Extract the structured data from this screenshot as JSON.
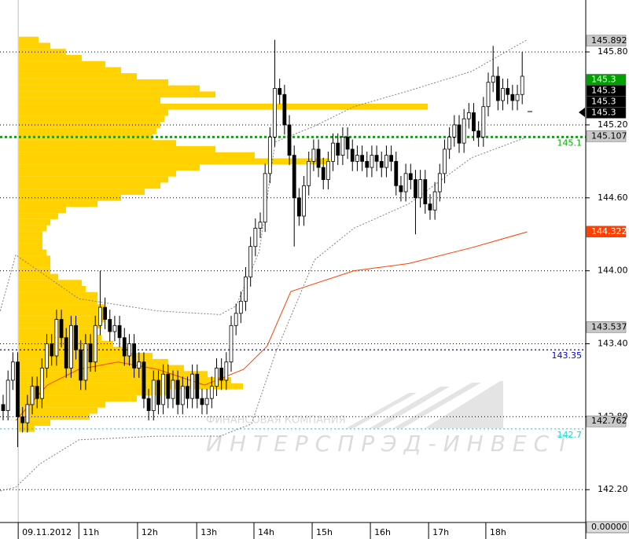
{
  "chart_data": {
    "type": "candlestick",
    "xlim": [
      -0.65,
      120
    ],
    "ylim": [
      141.93,
      146.227
    ],
    "yticks": [
      {
        "value": 142.2,
        "label": "142.20"
      },
      {
        "value": 142.8,
        "label": "142.80"
      },
      {
        "value": 143.4,
        "label": "143.40"
      },
      {
        "value": 144.0,
        "label": "144.00"
      },
      {
        "value": 144.6,
        "label": "144.60"
      },
      {
        "value": 145.2,
        "label": "145.20"
      },
      {
        "value": 145.8,
        "label": "145.80"
      }
    ],
    "xticks": [
      {
        "value": 3.1,
        "label": "09.11.2012"
      },
      {
        "value": 15.6,
        "label": "11h"
      },
      {
        "value": 27.7,
        "label": "12h"
      },
      {
        "value": 39.9,
        "label": "13h"
      },
      {
        "value": 51.7,
        "label": "14h"
      },
      {
        "value": 63.7,
        "label": "15h"
      },
      {
        "value": 75.7,
        "label": "16h"
      },
      {
        "value": 87.7,
        "label": "17h"
      },
      {
        "value": 99.5,
        "label": "18h"
      }
    ],
    "grid": true,
    "x": [
      0,
      1,
      2,
      3,
      4,
      5,
      6,
      7,
      8,
      9,
      10,
      11,
      12,
      13,
      14,
      15,
      16,
      17,
      18,
      19,
      20,
      21,
      22,
      23,
      24,
      25,
      26,
      27,
      28,
      29,
      30,
      31,
      32,
      33,
      34,
      35,
      36,
      37,
      38,
      39,
      40,
      41,
      42,
      43,
      44,
      45,
      46,
      47,
      48,
      49,
      50,
      51,
      52,
      53,
      54,
      55,
      56,
      57,
      58,
      59,
      60,
      61,
      62,
      63,
      64,
      65,
      66,
      67,
      68,
      69,
      70,
      71,
      72,
      73,
      74,
      75,
      76,
      77,
      78,
      79,
      80,
      81,
      82,
      83,
      84,
      85,
      86,
      87,
      88,
      89,
      90,
      91,
      92,
      93,
      94,
      95,
      96,
      97,
      98,
      99,
      100,
      101,
      102,
      103,
      104,
      105,
      106,
      107
    ],
    "candles": [
      [
        142.9,
        142.98,
        142.77,
        142.85
      ],
      [
        142.85,
        143.18,
        142.77,
        143.1
      ],
      [
        143.1,
        143.33,
        143.02,
        143.25
      ],
      [
        143.25,
        143.33,
        142.55,
        142.8
      ],
      [
        142.8,
        142.88,
        142.67,
        142.75
      ],
      [
        142.75,
        142.98,
        142.67,
        142.9
      ],
      [
        142.9,
        143.13,
        142.82,
        143.05
      ],
      [
        143.05,
        143.13,
        142.87,
        142.95
      ],
      [
        142.95,
        143.28,
        142.87,
        143.2
      ],
      [
        143.2,
        143.48,
        143.12,
        143.4
      ],
      [
        143.4,
        143.48,
        143.22,
        143.3
      ],
      [
        143.3,
        143.68,
        143.22,
        143.6
      ],
      [
        143.6,
        143.68,
        143.37,
        143.45
      ],
      [
        143.45,
        143.53,
        143.12,
        143.2
      ],
      [
        143.2,
        143.63,
        143.12,
        143.55
      ],
      [
        143.55,
        143.63,
        143.27,
        143.35
      ],
      [
        143.35,
        143.43,
        143.02,
        143.1
      ],
      [
        143.1,
        143.48,
        143.02,
        143.4
      ],
      [
        143.4,
        143.48,
        143.17,
        143.25
      ],
      [
        143.25,
        143.63,
        143.17,
        143.55
      ],
      [
        143.55,
        144.0,
        143.47,
        143.7
      ],
      [
        143.7,
        143.78,
        143.52,
        143.6
      ],
      [
        143.6,
        143.68,
        143.42,
        143.5
      ],
      [
        143.5,
        143.63,
        143.42,
        143.55
      ],
      [
        143.55,
        143.63,
        143.37,
        143.45
      ],
      [
        143.45,
        143.53,
        143.22,
        143.3
      ],
      [
        143.3,
        143.48,
        143.22,
        143.4
      ],
      [
        143.4,
        143.48,
        143.12,
        143.2
      ],
      [
        143.2,
        143.33,
        143.12,
        143.25
      ],
      [
        143.25,
        143.33,
        142.87,
        142.95
      ],
      [
        142.95,
        143.03,
        142.77,
        142.85
      ],
      [
        142.85,
        143.18,
        142.77,
        143.1
      ],
      [
        143.1,
        143.18,
        142.82,
        142.9
      ],
      [
        142.9,
        143.23,
        142.82,
        143.15
      ],
      [
        143.15,
        143.23,
        142.87,
        142.95
      ],
      [
        142.95,
        143.18,
        142.87,
        143.1
      ],
      [
        143.1,
        143.18,
        142.82,
        142.9
      ],
      [
        142.9,
        143.13,
        142.82,
        143.05
      ],
      [
        143.05,
        143.13,
        142.87,
        142.95
      ],
      [
        142.95,
        143.23,
        142.87,
        143.15
      ],
      [
        143.15,
        143.23,
        142.87,
        142.95
      ],
      [
        142.95,
        143.03,
        142.82,
        142.9
      ],
      [
        142.9,
        143.03,
        142.82,
        142.95
      ],
      [
        142.95,
        143.13,
        142.87,
        143.05
      ],
      [
        143.05,
        143.28,
        142.97,
        143.2
      ],
      [
        143.2,
        143.28,
        143.02,
        143.1
      ],
      [
        143.1,
        143.33,
        143.02,
        143.25
      ],
      [
        143.25,
        143.63,
        143.17,
        143.55
      ],
      [
        143.55,
        143.73,
        143.47,
        143.65
      ],
      [
        143.65,
        143.83,
        143.57,
        143.75
      ],
      [
        143.75,
        144.03,
        143.67,
        143.95
      ],
      [
        143.95,
        144.28,
        143.87,
        144.2
      ],
      [
        144.2,
        144.43,
        144.12,
        144.35
      ],
      [
        144.35,
        144.48,
        144.27,
        144.4
      ],
      [
        144.4,
        144.88,
        144.32,
        144.8
      ],
      [
        144.8,
        145.18,
        144.72,
        145.1
      ],
      [
        145.1,
        145.9,
        145.02,
        145.5
      ],
      [
        145.5,
        145.58,
        145.37,
        145.45
      ],
      [
        145.45,
        145.53,
        145.12,
        145.2
      ],
      [
        145.2,
        145.28,
        144.87,
        144.95
      ],
      [
        144.95,
        145.03,
        144.2,
        144.6
      ],
      [
        144.6,
        144.68,
        144.37,
        144.45
      ],
      [
        144.45,
        144.78,
        144.37,
        144.7
      ],
      [
        144.7,
        144.98,
        144.62,
        144.9
      ],
      [
        144.9,
        145.08,
        144.82,
        145.0
      ],
      [
        145.0,
        145.08,
        144.77,
        144.85
      ],
      [
        144.85,
        144.93,
        144.67,
        144.75
      ],
      [
        144.75,
        144.98,
        144.67,
        144.9
      ],
      [
        144.9,
        145.13,
        144.82,
        145.05
      ],
      [
        145.05,
        145.13,
        144.87,
        144.95
      ],
      [
        144.95,
        145.18,
        144.87,
        145.1
      ],
      [
        145.1,
        145.18,
        144.92,
        145.0
      ],
      [
        145.0,
        145.08,
        144.82,
        144.9
      ],
      [
        144.9,
        145.03,
        144.82,
        144.95
      ],
      [
        144.95,
        145.03,
        144.82,
        144.9
      ],
      [
        144.9,
        144.98,
        144.77,
        144.85
      ],
      [
        144.85,
        145.03,
        144.77,
        144.95
      ],
      [
        144.95,
        145.03,
        144.82,
        144.9
      ],
      [
        144.9,
        144.98,
        144.77,
        144.85
      ],
      [
        144.85,
        145.03,
        144.77,
        144.95
      ],
      [
        144.95,
        145.03,
        144.82,
        144.9
      ],
      [
        144.9,
        144.98,
        144.62,
        144.7
      ],
      [
        144.7,
        144.78,
        144.57,
        144.65
      ],
      [
        144.65,
        144.88,
        144.57,
        144.8
      ],
      [
        144.8,
        144.88,
        144.67,
        144.75
      ],
      [
        144.75,
        144.83,
        144.3,
        144.6
      ],
      [
        144.6,
        144.83,
        144.52,
        144.75
      ],
      [
        144.75,
        144.83,
        144.47,
        144.55
      ],
      [
        144.55,
        144.63,
        144.42,
        144.5
      ],
      [
        144.5,
        144.73,
        144.42,
        144.65
      ],
      [
        144.65,
        144.88,
        144.57,
        144.8
      ],
      [
        144.8,
        145.08,
        144.72,
        145.0
      ],
      [
        145.0,
        145.18,
        144.92,
        145.1
      ],
      [
        145.1,
        145.28,
        145.02,
        145.2
      ],
      [
        145.2,
        145.28,
        144.97,
        145.05
      ],
      [
        145.05,
        145.33,
        144.97,
        145.25
      ],
      [
        145.25,
        145.38,
        145.17,
        145.3
      ],
      [
        145.3,
        145.38,
        145.07,
        145.15
      ],
      [
        145.15,
        145.23,
        145.02,
        145.1
      ],
      [
        145.1,
        145.43,
        145.02,
        145.35
      ],
      [
        145.35,
        145.63,
        145.27,
        145.55
      ],
      [
        145.55,
        145.85,
        145.47,
        145.6
      ],
      [
        145.6,
        145.68,
        145.32,
        145.4
      ],
      [
        145.4,
        145.58,
        145.32,
        145.5
      ],
      [
        145.5,
        145.58,
        145.37,
        145.45
      ],
      [
        145.45,
        145.53,
        145.32,
        145.4
      ],
      [
        145.4,
        145.53,
        145.32,
        145.45
      ],
      [
        145.45,
        145.8,
        145.37,
        145.6
      ]
    ],
    "profile": {
      "color": "#ffd200",
      "prices": [
        142.7,
        142.75,
        142.8,
        142.85,
        142.9,
        142.95,
        143.0,
        143.05,
        143.1,
        143.15,
        143.2,
        143.25,
        143.3,
        143.35,
        143.4,
        143.45,
        143.5,
        143.55,
        143.6,
        143.65,
        143.7,
        143.75,
        143.8,
        143.85,
        143.9,
        143.95,
        144.0,
        144.05,
        144.1,
        144.15,
        144.2,
        144.25,
        144.3,
        144.35,
        144.4,
        144.45,
        144.5,
        144.55,
        144.6,
        144.65,
        144.7,
        144.75,
        144.8,
        144.85,
        144.9,
        144.95,
        145.0,
        145.05,
        145.1,
        145.15,
        145.2,
        145.25,
        145.3,
        145.35,
        145.4,
        145.45,
        145.5,
        145.55,
        145.6,
        145.65,
        145.7,
        145.75,
        145.8,
        145.85,
        145.9
      ],
      "volumes": [
        20,
        40,
        90,
        100,
        110,
        150,
        190,
        285,
        270,
        240,
        210,
        190,
        170,
        140,
        120,
        105,
        100,
        105,
        110,
        110,
        110,
        100,
        100,
        85,
        80,
        50,
        40,
        40,
        40,
        35,
        30,
        30,
        30,
        35,
        40,
        50,
        60,
        100,
        130,
        160,
        180,
        190,
        200,
        230,
        395,
        300,
        250,
        200,
        170,
        175,
        180,
        185,
        190,
        520,
        180,
        250,
        230,
        190,
        150,
        130,
        110,
        80,
        60,
        40,
        25
      ]
    },
    "lines": [
      {
        "color": "#ff4000",
        "style": "solid",
        "x": [
          2.6,
          9.1,
          15.6,
          23.7,
          31.8,
          41.5,
          49.6,
          54.4,
          59.3,
          72.3,
          83.6,
          96.6,
          108
        ],
        "values": [
          142.77,
          143.06,
          143.19,
          143.25,
          143.19,
          143.06,
          143.19,
          143.38,
          143.83,
          144.0,
          144.06,
          144.19,
          144.32
        ]
      },
      {
        "color": "#808080",
        "style": "dotted",
        "x": [
          -0.6,
          2.6,
          15.6,
          31.8,
          44.7,
          48.0,
          52.8,
          56.1,
          64.2,
          72.3,
          83.6,
          96.6,
          108
        ],
        "values": [
          143.67,
          144.13,
          143.77,
          143.67,
          143.64,
          143.71,
          144.16,
          145.06,
          145.19,
          145.35,
          145.48,
          145.64,
          145.9
        ]
      },
      {
        "color": "#808080",
        "style": "dotted",
        "x": [
          -0.6,
          2.6,
          7.5,
          15.6,
          31.8,
          44.7,
          51.2,
          56.1,
          64.2,
          72.3,
          83.6,
          96.6,
          108
        ],
        "values": [
          142.19,
          142.22,
          142.41,
          142.61,
          142.64,
          142.64,
          142.74,
          143.32,
          144.09,
          144.35,
          144.55,
          144.93,
          145.1
        ]
      }
    ],
    "levels": [
      {
        "value": 145.1,
        "color": "#00b000"
      },
      {
        "value": 143.35,
        "color": "#0000e0"
      },
      {
        "value": 142.7,
        "color": "#00e0e0"
      }
    ],
    "tags": [
      {
        "value": 145.892,
        "color": "#c8c8c8",
        "text_color": "#000000"
      },
      {
        "value": 145.3,
        "color": "#00a000",
        "text_color": "#ffffff"
      },
      {
        "value": 145.3,
        "color": "#000000",
        "text_color": "#ffffff"
      },
      {
        "value": 145.3,
        "color": "#000000",
        "text_color": "#ffffff"
      },
      {
        "value": 145.3,
        "color": "#000000",
        "text_color": "#ffffff"
      },
      {
        "value": 145.107,
        "color": "#c8c8c8",
        "text_color": "#000000"
      },
      {
        "value": 144.322,
        "color": "#ff4000",
        "text_color": "#ffffff"
      },
      {
        "value": 143.537,
        "color": "#c8c8c8",
        "text_color": "#000000"
      },
      {
        "value": 142.762,
        "color": "#c8c8c8",
        "text_color": "#000000"
      }
    ],
    "subwindow_label": "0.00000",
    "watermark": {
      "line1": "ФИНАНСОВАЯ КОМПАНИЯ",
      "line2": "ИНТЕРСПРЭД-ИНВЕСТ"
    }
  }
}
